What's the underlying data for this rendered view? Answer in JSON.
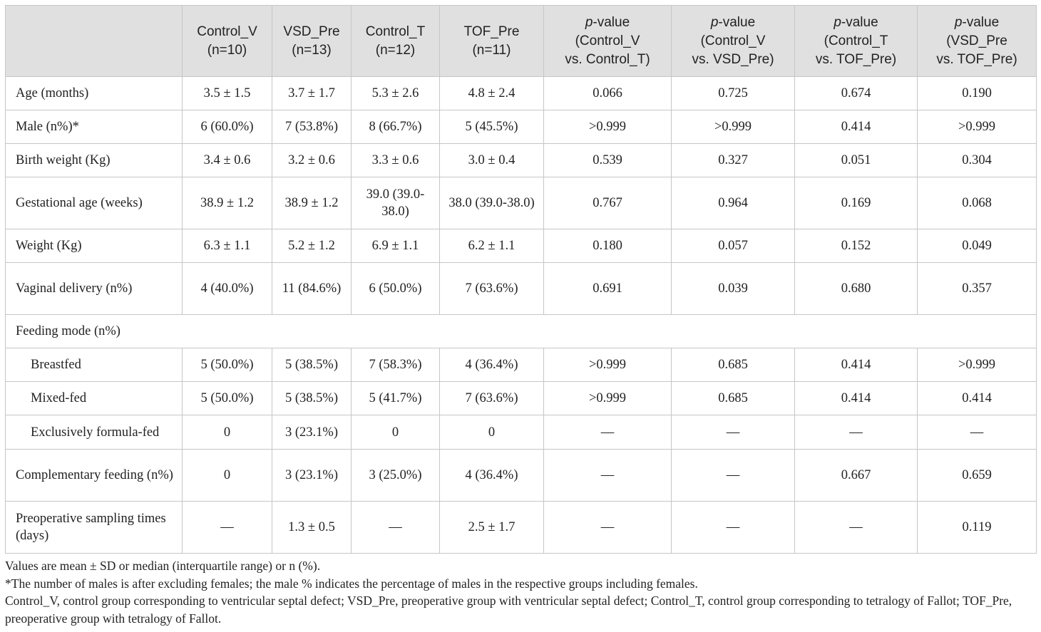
{
  "table": {
    "headers": [
      {
        "lines": [
          "",
          ""
        ]
      },
      {
        "lines": [
          "Control_V",
          "(n=10)"
        ]
      },
      {
        "lines": [
          "VSD_Pre",
          "(n=13)"
        ]
      },
      {
        "lines": [
          "Control_T",
          "(n=12)"
        ]
      },
      {
        "lines": [
          "TOF_Pre",
          "(n=11)"
        ]
      },
      {
        "italic": "p",
        "lines": [
          "-value",
          "(Control_V",
          "vs. Control_T)"
        ]
      },
      {
        "italic": "p",
        "lines": [
          "-value",
          "(Control_V",
          "vs. VSD_Pre)"
        ]
      },
      {
        "italic": "p",
        "lines": [
          "-value",
          "(Control_T",
          "vs. TOF_Pre)"
        ]
      },
      {
        "italic": "p",
        "lines": [
          "-value",
          "(VSD_Pre",
          "vs. TOF_Pre)"
        ]
      }
    ],
    "rows": [
      {
        "label": "Age (months)",
        "cells": [
          "3.5 ± 1.5",
          "3.7 ± 1.7",
          "5.3 ± 2.6",
          "4.8 ± 2.4",
          "0.066",
          "0.725",
          "0.674",
          "0.190"
        ]
      },
      {
        "label": "Male (n%)*",
        "cells": [
          "6 (60.0%)",
          "7 (53.8%)",
          "8 (66.7%)",
          "5 (45.5%)",
          ">0.999",
          ">0.999",
          "0.414",
          ">0.999"
        ]
      },
      {
        "label": "Birth weight (Kg)",
        "cells": [
          "3.4 ± 0.6",
          "3.2 ± 0.6",
          "3.3 ± 0.6",
          "3.0 ± 0.4",
          "0.539",
          "0.327",
          "0.051",
          "0.304"
        ]
      },
      {
        "label": "Gestational age (weeks)",
        "cells": [
          "38.9 ± 1.2",
          "38.9 ± 1.2",
          "39.0 (39.0-38.0)",
          "38.0 (39.0-38.0)",
          "0.767",
          "0.964",
          "0.169",
          "0.068"
        ]
      },
      {
        "label": "Weight (Kg)",
        "cells": [
          "6.3 ± 1.1",
          "5.2 ± 1.2",
          "6.9 ± 1.1",
          "6.2 ± 1.1",
          "0.180",
          "0.057",
          "0.152",
          "0.049"
        ]
      },
      {
        "label": "Vaginal delivery (n%)",
        "cells": [
          "4 (40.0%)",
          "11 (84.6%)",
          "6 (50.0%)",
          "7 (63.6%)",
          "0.691",
          "0.039",
          "0.680",
          "0.357"
        ]
      },
      {
        "label": "Feeding mode (n%)",
        "cells": []
      },
      {
        "label": "Breastfed",
        "cells": [
          "5 (50.0%)",
          "5 (38.5%)",
          "7 (58.3%)",
          "4 (36.4%)",
          ">0.999",
          "0.685",
          "0.414",
          ">0.999"
        ]
      },
      {
        "label": "Mixed-fed",
        "cells": [
          "5 (50.0%)",
          "5 (38.5%)",
          "5 (41.7%)",
          "7 (63.6%)",
          ">0.999",
          "0.685",
          "0.414",
          "0.414"
        ]
      },
      {
        "label": "Exclusively formula-fed",
        "cells": [
          "0",
          "3 (23.1%)",
          "0",
          "0",
          "—",
          "—",
          "—",
          "—"
        ]
      },
      {
        "label": "Complementary feeding (n%)",
        "cells": [
          "0",
          "3 (23.1%)",
          "3 (25.0%)",
          "4 (36.4%)",
          "—",
          "—",
          "0.667",
          "0.659"
        ]
      },
      {
        "label": "Preoperative sampling times (days)",
        "cells": [
          "—",
          "1.3 ± 0.5",
          "—",
          "2.5 ± 1.7",
          "—",
          "—",
          "—",
          "0.119"
        ]
      }
    ]
  },
  "notes": [
    "Values are mean ± SD or median (interquartile range) or n (%).",
    "*The number of males is after excluding females; the male % indicates the percentage of males in the respective groups including females.",
    "Control_V, control group corresponding to ventricular septal defect; VSD_Pre, preoperative group with ventricular septal defect; Control_T, control group corresponding to tetralogy of Fallot; TOF_Pre, preoperative group with tetralogy of Fallot."
  ]
}
